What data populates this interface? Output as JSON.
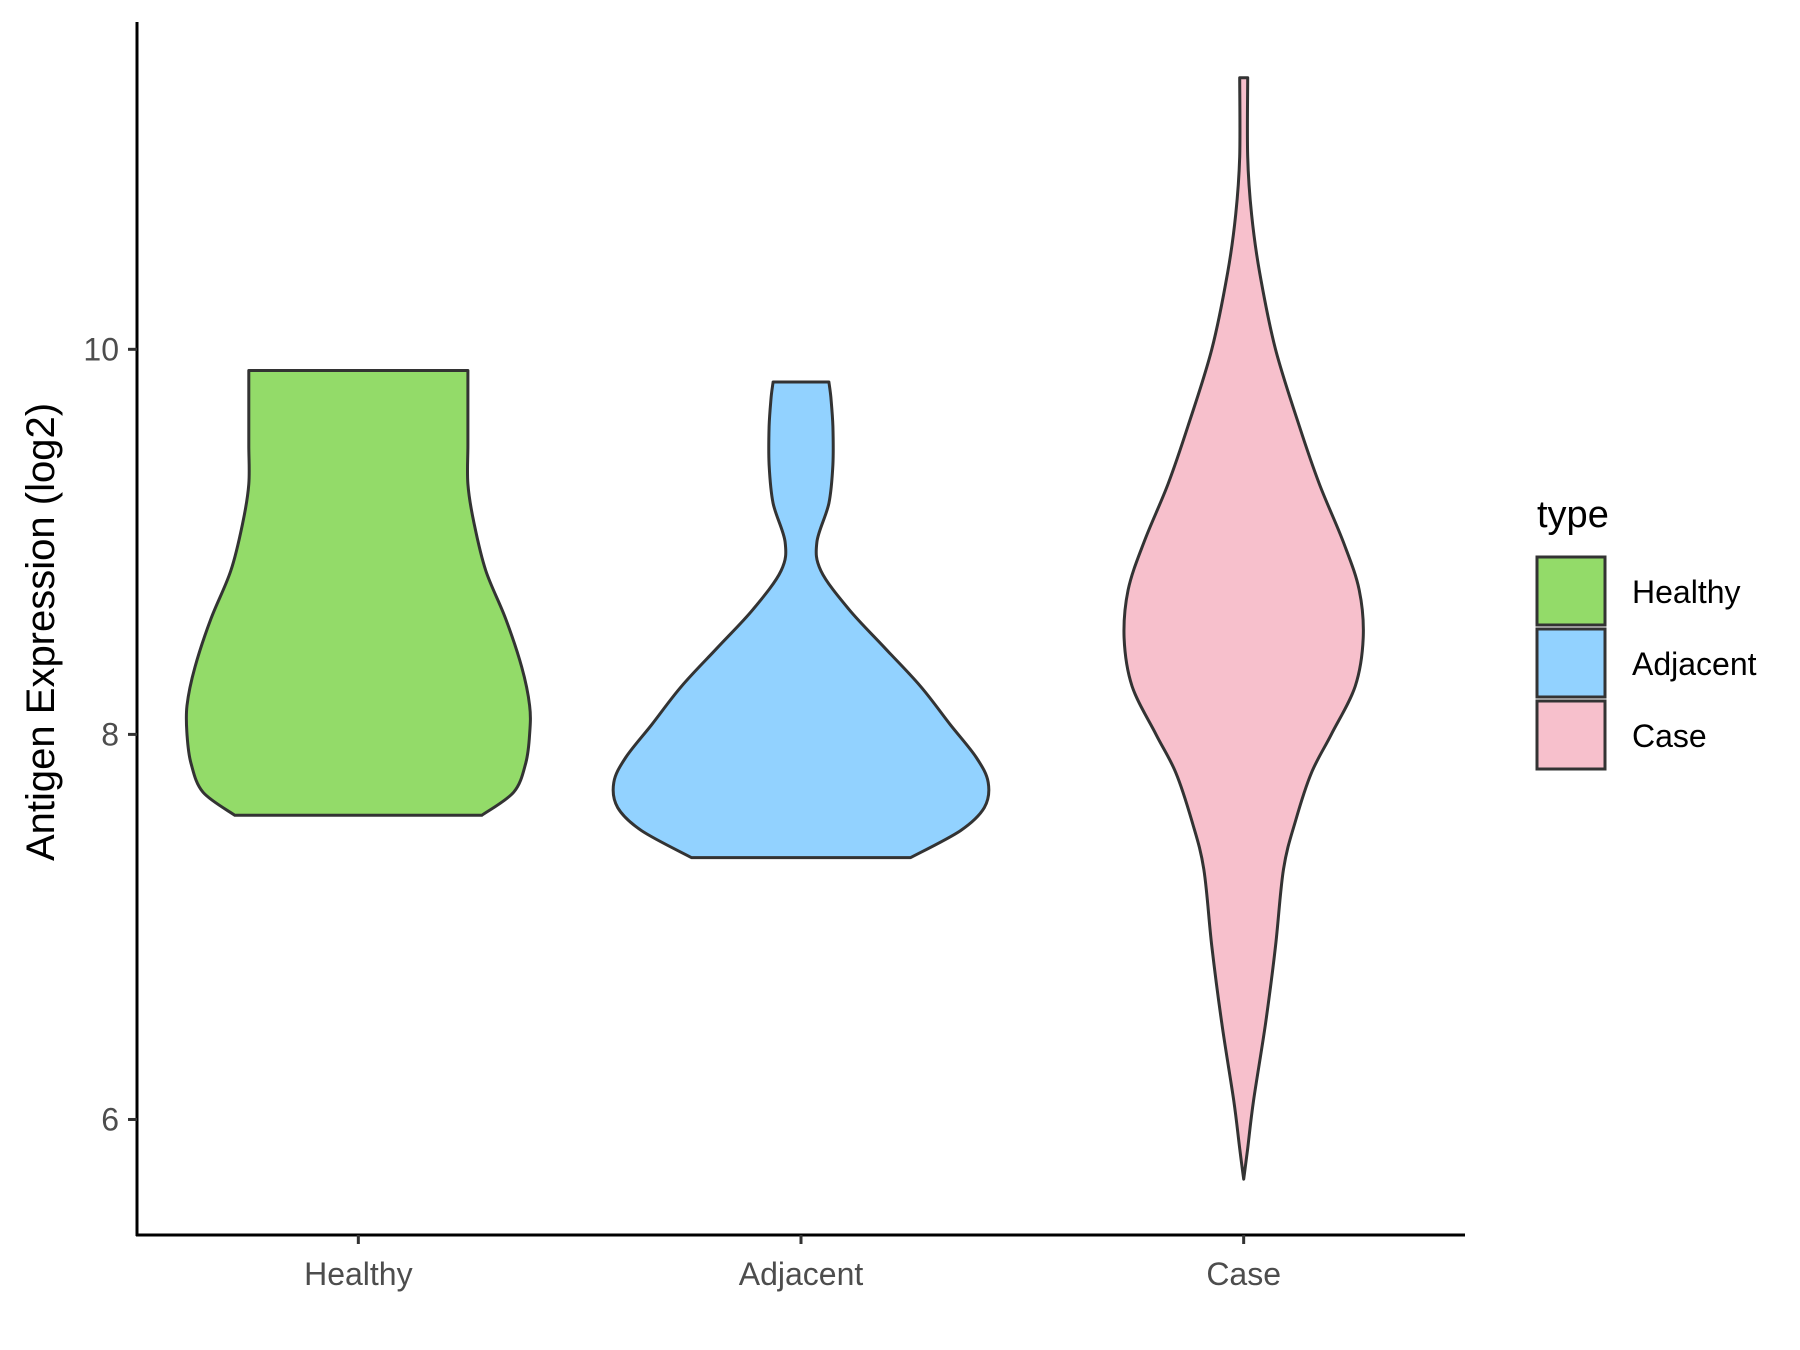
{
  "chart_data": {
    "type": "violin",
    "xlabel": "",
    "ylabel": "Antigen Expression (log2)",
    "ylim": [
      5.4,
      11.7
    ],
    "yticks": [
      6,
      8,
      10
    ],
    "categories": [
      "Healthy",
      "Adjacent",
      "Case"
    ],
    "grid": false,
    "legend": {
      "title": "type",
      "position": "right",
      "entries": [
        {
          "label": "Healthy",
          "color": "#93DB69"
        },
        {
          "label": "Adjacent",
          "color": "#92D2FF"
        },
        {
          "label": "Case",
          "color": "#F7C0CC"
        }
      ]
    },
    "series": [
      {
        "name": "Healthy",
        "color": "#93DB69",
        "min": 7.58,
        "max": 9.89,
        "density": [
          [
            7.58,
            0.62
          ],
          [
            7.7,
            0.78
          ],
          [
            7.85,
            0.84
          ],
          [
            8.0,
            0.86
          ],
          [
            8.15,
            0.86
          ],
          [
            8.35,
            0.82
          ],
          [
            8.6,
            0.74
          ],
          [
            8.85,
            0.64
          ],
          [
            9.1,
            0.58
          ],
          [
            9.3,
            0.55
          ],
          [
            9.5,
            0.55
          ],
          [
            9.7,
            0.55
          ],
          [
            9.89,
            0.55
          ]
        ]
      },
      {
        "name": "Adjacent",
        "color": "#92D2FF",
        "min": 7.36,
        "max": 9.83,
        "density": [
          [
            7.36,
            0.55
          ],
          [
            7.5,
            0.8
          ],
          [
            7.62,
            0.92
          ],
          [
            7.75,
            0.94
          ],
          [
            7.88,
            0.88
          ],
          [
            8.05,
            0.75
          ],
          [
            8.25,
            0.6
          ],
          [
            8.45,
            0.42
          ],
          [
            8.65,
            0.24
          ],
          [
            8.85,
            0.1
          ],
          [
            9.0,
            0.08
          ],
          [
            9.2,
            0.14
          ],
          [
            9.4,
            0.16
          ],
          [
            9.6,
            0.16
          ],
          [
            9.75,
            0.15
          ],
          [
            9.83,
            0.14
          ]
        ]
      },
      {
        "name": "Case",
        "color": "#F7C0CC",
        "min": 5.69,
        "max": 11.41,
        "density": [
          [
            5.69,
            0.0
          ],
          [
            5.85,
            0.02
          ],
          [
            6.1,
            0.05
          ],
          [
            6.5,
            0.11
          ],
          [
            6.9,
            0.16
          ],
          [
            7.3,
            0.2
          ],
          [
            7.55,
            0.26
          ],
          [
            7.8,
            0.34
          ],
          [
            8.0,
            0.44
          ],
          [
            8.25,
            0.56
          ],
          [
            8.5,
            0.6
          ],
          [
            8.75,
            0.58
          ],
          [
            9.0,
            0.5
          ],
          [
            9.3,
            0.38
          ],
          [
            9.6,
            0.28
          ],
          [
            10.0,
            0.16
          ],
          [
            10.4,
            0.08
          ],
          [
            10.7,
            0.04
          ],
          [
            11.0,
            0.02
          ],
          [
            11.41,
            0.02
          ]
        ]
      }
    ]
  }
}
